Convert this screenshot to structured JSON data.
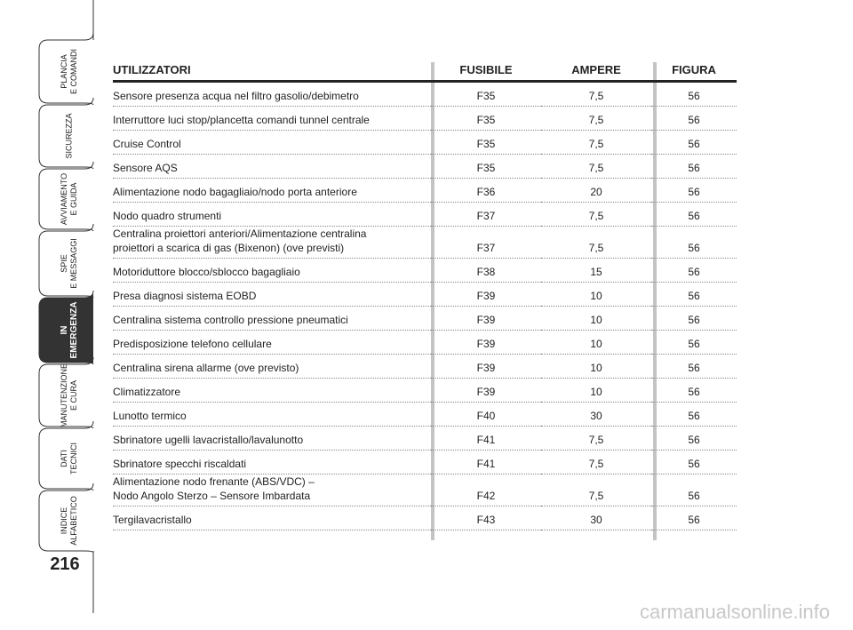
{
  "sidebar": {
    "tabs": [
      {
        "lines": [
          "PLANCIA",
          "E COMANDI"
        ]
      },
      {
        "lines": [
          "SICUREZZA"
        ]
      },
      {
        "lines": [
          "AVVIAMENTO",
          "E GUIDA"
        ]
      },
      {
        "lines": [
          "SPIE",
          "E MESSAGGI"
        ]
      },
      {
        "lines": [
          "IN",
          "EMERGENZA"
        ]
      },
      {
        "lines": [
          "MANUTENZIONE",
          "E CURA"
        ]
      },
      {
        "lines": [
          "DATI",
          "TECNICI"
        ]
      },
      {
        "lines": [
          "INDICE",
          "ALFABETICO"
        ]
      }
    ]
  },
  "page_number": "216",
  "table": {
    "header": [
      "UTILIZZATORI",
      "FUSIBILE",
      "AMPERE",
      "FIGURA"
    ],
    "rows": [
      [
        [
          "Sensore presenza acqua nel filtro gasolio/debimetro"
        ],
        "F35",
        "7,5",
        "56"
      ],
      [
        [
          "Interruttore luci stop/plancetta comandi tunnel centrale"
        ],
        "F35",
        "7,5",
        "56"
      ],
      [
        [
          "Cruise Control"
        ],
        "F35",
        "7,5",
        "56"
      ],
      [
        [
          "Sensore AQS"
        ],
        "F35",
        "7,5",
        "56"
      ],
      [
        [
          "Alimentazione nodo bagagliaio/nodo porta anteriore"
        ],
        "F36",
        "20",
        "56"
      ],
      [
        [
          "Nodo quadro strumenti"
        ],
        "F37",
        "7,5",
        "56"
      ],
      [
        [
          "Centralina proiettori anteriori/Alimentazione centralina",
          "proiettori a scarica di gas (Bixenon) (ove previsti)"
        ],
        "F37",
        "7,5",
        "56"
      ],
      [
        [
          "Motoriduttore blocco/sblocco bagagliaio"
        ],
        "F38",
        "15",
        "56"
      ],
      [
        [
          "Presa diagnosi sistema EOBD"
        ],
        "F39",
        "10",
        "56"
      ],
      [
        [
          "Centralina sistema controllo pressione pneumatici"
        ],
        "F39",
        "10",
        "56"
      ],
      [
        [
          "Predisposizione telefono cellulare"
        ],
        "F39",
        "10",
        "56"
      ],
      [
        [
          "Centralina sirena allarme (ove previsto)"
        ],
        "F39",
        "10",
        "56"
      ],
      [
        [
          "Climatizzatore"
        ],
        "F39",
        "10",
        "56"
      ],
      [
        [
          "Lunotto termico"
        ],
        "F40",
        "30",
        "56"
      ],
      [
        [
          "Sbrinatore ugelli lavacristallo/lavalunotto"
        ],
        "F41",
        "7,5",
        "56"
      ],
      [
        [
          "Sbrinatore specchi riscaldati"
        ],
        "F41",
        "7,5",
        "56"
      ],
      [
        [
          "Alimentazione nodo frenante (ABS/VDC) –",
          "Nodo Angolo Sterzo – Sensore Imbardata"
        ],
        "F42",
        "7,5",
        "56"
      ],
      [
        [
          "Tergilavacristallo"
        ],
        "F43",
        "30",
        "56"
      ]
    ]
  },
  "watermark": "carmanualsonline.info"
}
